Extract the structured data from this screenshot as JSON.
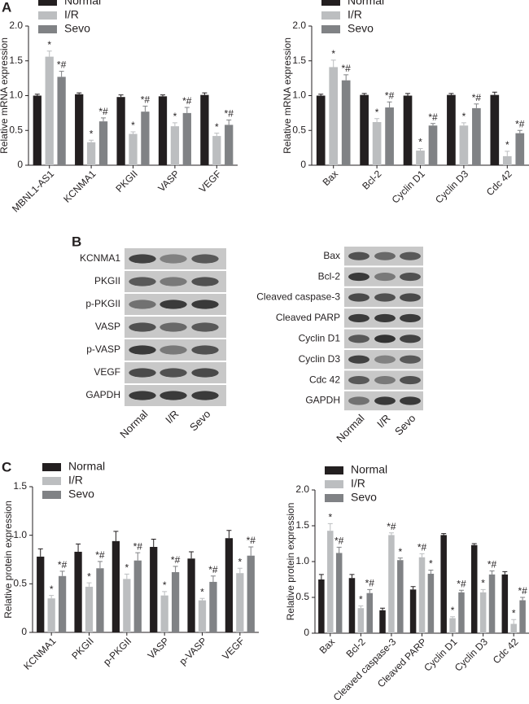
{
  "panel_labels": [
    "A",
    "B",
    "C"
  ],
  "chart_data": [
    {
      "type": "bar",
      "ylabel": "Relative mRNA expression",
      "legend": "upper left",
      "categories": [
        "MBNL1-AS1",
        "KCNMA1",
        "PKGII",
        "VASP",
        "VEGF"
      ],
      "ylim": [
        0,
        2
      ],
      "yticks": [
        0,
        0.5,
        {
          "value": 1,
          "label": "1.0"
        },
        1.5,
        {
          "value": 2,
          "label": "2.0"
        }
      ],
      "series": [
        {
          "name": "Normal",
          "color": "#231f20",
          "values": [
            1.0,
            1.02,
            0.98,
            0.99,
            1.01
          ],
          "errors": [
            0.02,
            0.02,
            0.03,
            0.02,
            0.03
          ]
        },
        {
          "name": "I/R",
          "color": "#bcbec0",
          "values": [
            1.56,
            0.33,
            0.45,
            0.56,
            0.42
          ],
          "errors": [
            0.08,
            0.03,
            0.03,
            0.05,
            0.04
          ],
          "annotations": [
            "*",
            "*",
            "*",
            "*",
            "*"
          ]
        },
        {
          "name": "Sevo",
          "color": "#808285",
          "values": [
            1.27,
            0.63,
            0.77,
            0.75,
            0.58
          ],
          "errors": [
            0.08,
            0.05,
            0.08,
            0.08,
            0.07
          ],
          "annotations": [
            "*#",
            "*#",
            "*#",
            "*#",
            "*#"
          ]
        }
      ]
    },
    {
      "type": "bar",
      "ylabel": "Relative mRNA expression",
      "legend": "upper left",
      "categories": [
        "Bax",
        "Bcl-2",
        "Cyclin D1",
        "Cyclin D3",
        "Cdc 42"
      ],
      "ylim": [
        0,
        2
      ],
      "yticks": [
        0,
        0.5,
        {
          "value": 1,
          "label": "1.0"
        },
        1.5,
        {
          "value": 2,
          "label": "2.0"
        }
      ],
      "series": [
        {
          "name": "Normal",
          "color": "#231f20",
          "values": [
            1.0,
            1.01,
            1.0,
            1.01,
            1.01
          ],
          "errors": [
            0.02,
            0.02,
            0.03,
            0.02,
            0.04
          ]
        },
        {
          "name": "I/R",
          "color": "#bcbec0",
          "values": [
            1.41,
            0.62,
            0.21,
            0.57,
            0.13
          ],
          "errors": [
            0.1,
            0.05,
            0.03,
            0.04,
            0.07
          ],
          "annotations": [
            "*",
            "*",
            "*",
            "*",
            "*"
          ]
        },
        {
          "name": "Sevo",
          "color": "#808285",
          "values": [
            1.22,
            0.83,
            0.57,
            0.82,
            0.46
          ],
          "errors": [
            0.08,
            0.08,
            0.03,
            0.06,
            0.04
          ],
          "annotations": [
            "*#",
            "*#",
            "*#",
            "*#",
            "*#"
          ]
        }
      ]
    },
    {
      "type": "bar",
      "ylabel": "Relative protein expression",
      "legend": "upper left",
      "categories": [
        "KCNMA1",
        "PKGII",
        "p-PKGII",
        "VASP",
        "p-VASP",
        "VEGF"
      ],
      "ylim": [
        0,
        1.5
      ],
      "yticks": [
        0,
        0.5,
        {
          "value": 1,
          "label": "1.0"
        },
        1.5
      ],
      "series": [
        {
          "name": "Normal",
          "color": "#231f20",
          "values": [
            0.78,
            0.83,
            0.94,
            0.88,
            0.76,
            0.97
          ],
          "errors": [
            0.08,
            0.08,
            0.1,
            0.08,
            0.07,
            0.08
          ]
        },
        {
          "name": "I/R",
          "color": "#bcbec0",
          "values": [
            0.35,
            0.47,
            0.55,
            0.38,
            0.33,
            0.61
          ],
          "errors": [
            0.03,
            0.04,
            0.05,
            0.04,
            0.02,
            0.05
          ],
          "annotations": [
            "*",
            "*",
            "*",
            "*",
            "*",
            "*"
          ]
        },
        {
          "name": "Sevo",
          "color": "#808285",
          "values": [
            0.58,
            0.66,
            0.74,
            0.62,
            0.52,
            0.79
          ],
          "errors": [
            0.05,
            0.07,
            0.08,
            0.06,
            0.06,
            0.09
          ],
          "annotations": [
            "*#",
            "*#",
            "*#",
            "*#",
            "*#",
            "*#"
          ]
        }
      ]
    },
    {
      "type": "bar",
      "ylabel": "Relative protein expression",
      "legend": "upper left",
      "categories": [
        "Bax",
        "Bcl-2",
        "Cleaved caspase-3",
        "Cleaved PARP",
        "Cyclin D1",
        "Cyclin D3",
        "Cdc 42"
      ],
      "ylim": [
        0,
        2
      ],
      "yticks": [
        0,
        0.5,
        {
          "value": 1,
          "label": "1.0"
        },
        1.5,
        {
          "value": 2,
          "label": "2.0"
        }
      ],
      "series": [
        {
          "name": "Normal",
          "color": "#231f20",
          "values": [
            0.75,
            0.77,
            0.32,
            0.61,
            1.37,
            1.23,
            0.82
          ],
          "errors": [
            0.07,
            0.05,
            0.03,
            0.04,
            0.02,
            0.02,
            0.04
          ]
        },
        {
          "name": "I/R",
          "color": "#bcbec0",
          "values": [
            1.43,
            0.35,
            1.37,
            1.06,
            0.21,
            0.57,
            0.13
          ],
          "errors": [
            0.1,
            0.03,
            0.03,
            0.05,
            0.02,
            0.04,
            0.06
          ],
          "annotations": [
            "*",
            "*",
            "*#",
            "*#",
            "*",
            "*",
            "*"
          ]
        },
        {
          "name": "Sevo",
          "color": "#808285",
          "values": [
            1.12,
            0.56,
            1.02,
            0.83,
            0.57,
            0.82,
            0.46
          ],
          "errors": [
            0.08,
            0.05,
            0.03,
            0.05,
            0.03,
            0.05,
            0.04
          ],
          "annotations": [
            "*#",
            "*#",
            "*",
            "*",
            "*#",
            "*#",
            "*#"
          ]
        }
      ]
    }
  ],
  "blots": [
    {
      "rows": [
        "KCNMA1",
        "PKGII",
        "p-PKGII",
        "VASP",
        "p-VASP",
        "VEGF",
        "GAPDH"
      ],
      "lanes": [
        "Normal",
        "I/R",
        "Sevo"
      ]
    },
    {
      "rows": [
        "Bax",
        "Bcl-2",
        "Cleaved caspase-3",
        "Cleaved PARP",
        "Cyclin D1",
        "Cyclin D3",
        "Cdc 42",
        "GAPDH"
      ],
      "lanes": [
        "Normal",
        "I/R",
        "Sevo"
      ]
    }
  ]
}
